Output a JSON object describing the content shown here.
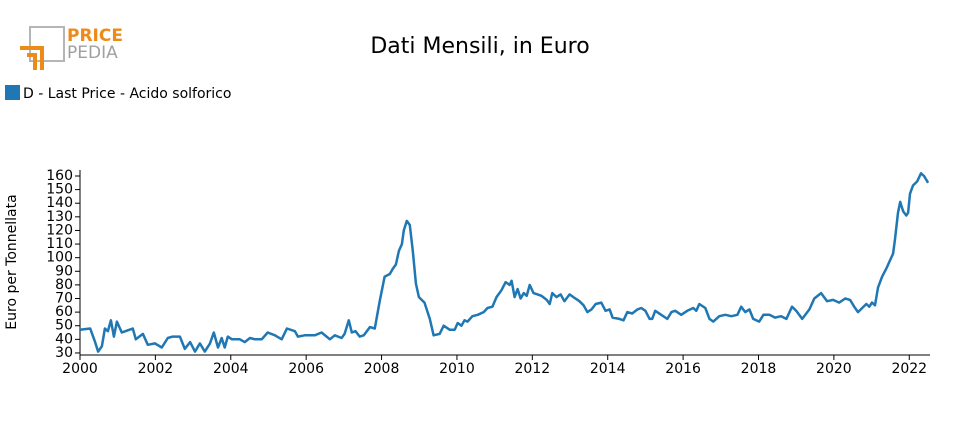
{
  "logo": {
    "line1": "PRICE",
    "line2": "PEDIA"
  },
  "chart_data": {
    "type": "line",
    "title": "Dati Mensili, in Euro",
    "ylabel": "Euro per Tonnellata",
    "x": [
      2000.0,
      2000.27,
      2000.4,
      2000.48,
      2000.58,
      2000.66,
      2000.74,
      2000.82,
      2000.9,
      2000.98,
      2001.11,
      2001.4,
      2001.48,
      2001.67,
      2001.8,
      2001.99,
      2002.17,
      2002.33,
      2002.46,
      2002.65,
      2002.78,
      2002.92,
      2003.05,
      2003.18,
      2003.31,
      2003.45,
      2003.55,
      2003.66,
      2003.76,
      2003.84,
      2003.92,
      2004.03,
      2004.24,
      2004.37,
      2004.51,
      2004.64,
      2004.82,
      2004.98,
      2005.17,
      2005.35,
      2005.49,
      2005.7,
      2005.78,
      2005.96,
      2006.23,
      2006.41,
      2006.63,
      2006.76,
      2006.94,
      2007.02,
      2007.13,
      2007.21,
      2007.31,
      2007.42,
      2007.53,
      2007.69,
      2007.82,
      2007.95,
      2008.08,
      2008.22,
      2008.3,
      2008.38,
      2008.46,
      2008.54,
      2008.59,
      2008.67,
      2008.75,
      2008.83,
      2008.91,
      2008.99,
      2009.14,
      2009.28,
      2009.38,
      2009.54,
      2009.65,
      2009.81,
      2009.94,
      2010.02,
      2010.12,
      2010.2,
      2010.28,
      2010.41,
      2010.55,
      2010.71,
      2010.81,
      2010.94,
      2011.05,
      2011.18,
      2011.29,
      2011.4,
      2011.45,
      2011.53,
      2011.61,
      2011.69,
      2011.77,
      2011.85,
      2011.93,
      2012.03,
      2012.14,
      2012.24,
      2012.38,
      2012.46,
      2012.53,
      2012.64,
      2012.75,
      2012.85,
      2012.99,
      2013.09,
      2013.25,
      2013.36,
      2013.46,
      2013.57,
      2013.68,
      2013.83,
      2013.94,
      2014.05,
      2014.13,
      2014.31,
      2014.42,
      2014.52,
      2014.65,
      2014.79,
      2014.89,
      2015.0,
      2015.11,
      2015.18,
      2015.26,
      2015.42,
      2015.58,
      2015.69,
      2015.79,
      2015.95,
      2016.11,
      2016.27,
      2016.35,
      2016.43,
      2016.59,
      2016.7,
      2016.8,
      2016.96,
      2017.12,
      2017.28,
      2017.44,
      2017.54,
      2017.65,
      2017.76,
      2017.86,
      2018.02,
      2018.13,
      2018.29,
      2018.44,
      2018.6,
      2018.74,
      2018.89,
      2019.0,
      2019.16,
      2019.35,
      2019.48,
      2019.66,
      2019.82,
      2019.98,
      2020.14,
      2020.3,
      2020.43,
      2020.54,
      2020.64,
      2020.75,
      2020.86,
      2020.94,
      2021.01,
      2021.09,
      2021.17,
      2021.28,
      2021.39,
      2021.49,
      2021.57,
      2021.62,
      2021.7,
      2021.76,
      2021.84,
      2021.92,
      2021.97,
      2022.02,
      2022.1,
      2022.21,
      2022.31,
      2022.39,
      2022.5
    ],
    "series": [
      {
        "name": "D - Last Price - Acido solforico",
        "color": "#1f77b4",
        "values": [
          47,
          48,
          38,
          31,
          35,
          48,
          46,
          54,
          42,
          53,
          45,
          48,
          40,
          44,
          36,
          37,
          34,
          41,
          42,
          42,
          33,
          38,
          31,
          37,
          31,
          37,
          45,
          34,
          41,
          34,
          42,
          40,
          40,
          38,
          41,
          40,
          40,
          45,
          43,
          40,
          48,
          46,
          42,
          43,
          43,
          45,
          40,
          43,
          41,
          44,
          54,
          45,
          46,
          42,
          43,
          49,
          48,
          68,
          86,
          88,
          92,
          95,
          105,
          110,
          120,
          127,
          124,
          105,
          81,
          71,
          67,
          55,
          43,
          44,
          50,
          47,
          47,
          52,
          50,
          54,
          53,
          57,
          58,
          60,
          63,
          64,
          71,
          76,
          82,
          80,
          83,
          71,
          77,
          70,
          74,
          72,
          80,
          74,
          73,
          72,
          69,
          66,
          74,
          71,
          73,
          68,
          73,
          71,
          68,
          65,
          60,
          62,
          66,
          67,
          61,
          62,
          56,
          55,
          54,
          60,
          59,
          62,
          63,
          61,
          55,
          55,
          61,
          58,
          55,
          60,
          61,
          58,
          61,
          63,
          61,
          66,
          63,
          55,
          53,
          57,
          58,
          57,
          58,
          64,
          60,
          62,
          55,
          53,
          58,
          58,
          56,
          57,
          55,
          64,
          61,
          55,
          62,
          70,
          74,
          68,
          69,
          67,
          70,
          69,
          64,
          60,
          63,
          66,
          64,
          67,
          65,
          78,
          86,
          92,
          98,
          103,
          113,
          133,
          141,
          134,
          131,
          133,
          147,
          153,
          156,
          162,
          160,
          155
        ]
      }
    ],
    "xlim": [
      2000,
      2022.55
    ],
    "xticks": [
      2000,
      2002,
      2004,
      2006,
      2008,
      2010,
      2012,
      2014,
      2016,
      2018,
      2020,
      2022
    ],
    "ylim": [
      28.5,
      164.4
    ],
    "yticks": [
      30,
      40,
      50,
      60,
      70,
      80,
      90,
      100,
      110,
      120,
      130,
      140,
      150,
      160
    ]
  }
}
